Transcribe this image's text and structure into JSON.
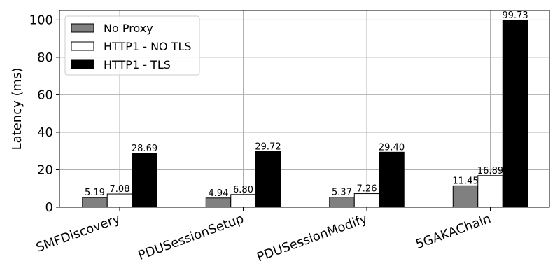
{
  "chart_data": {
    "type": "bar",
    "title": "",
    "xlabel": "",
    "ylabel": "Latency (ms)",
    "ylim": [
      0,
      105
    ],
    "yticks": [
      0,
      20,
      40,
      60,
      80,
      100
    ],
    "grid": true,
    "legend_position": "top-left",
    "categories": [
      "SMFDiscovery",
      "PDUSessionSetup",
      "PDUSessionModify",
      "5GAKAChain"
    ],
    "series": [
      {
        "name": "No Proxy",
        "color": "#808080",
        "values": [
          5.19,
          4.94,
          5.37,
          11.45
        ],
        "labels": [
          "5.19",
          "4.94",
          "5.37",
          "11.45"
        ]
      },
      {
        "name": "HTTP1 - NO TLS",
        "color": "#ffffff",
        "values": [
          7.08,
          6.8,
          7.26,
          16.89
        ],
        "labels": [
          "7.08",
          "6.80",
          "7.26",
          "16.89"
        ]
      },
      {
        "name": "HTTP1 - TLS",
        "color": "#000000",
        "values": [
          28.69,
          29.72,
          29.4,
          99.73
        ],
        "labels": [
          "28.69",
          "29.72",
          "29.40",
          "99.73"
        ]
      }
    ]
  }
}
